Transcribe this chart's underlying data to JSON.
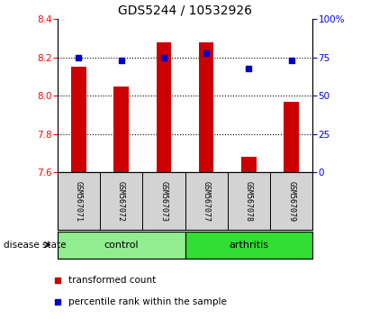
{
  "title": "GDS5244 / 10532926",
  "samples": [
    "GSM567071",
    "GSM567072",
    "GSM567073",
    "GSM567077",
    "GSM567078",
    "GSM567079"
  ],
  "bar_values": [
    8.15,
    8.05,
    8.28,
    8.28,
    7.68,
    7.97
  ],
  "percentile_values": [
    75,
    73,
    75,
    78,
    68,
    73
  ],
  "bar_bottom": 7.6,
  "ylim_left": [
    7.6,
    8.4
  ],
  "ylim_right": [
    0,
    100
  ],
  "yticks_left": [
    7.6,
    7.8,
    8.0,
    8.2,
    8.4
  ],
  "yticks_right": [
    0,
    25,
    50,
    75,
    100
  ],
  "bar_color": "#cc0000",
  "square_color": "#0000cc",
  "control_color": "#90ee90",
  "arthritis_color": "#33dd33",
  "group_label": "disease state",
  "xlabel_control": "control",
  "xlabel_arthritis": "arthritis",
  "legend_bar_label": "transformed count",
  "legend_sq_label": "percentile rank within the sample",
  "title_fontsize": 10,
  "tick_label_fontsize": 7.5,
  "bar_width": 0.35,
  "grid_linestyle": "dotted"
}
